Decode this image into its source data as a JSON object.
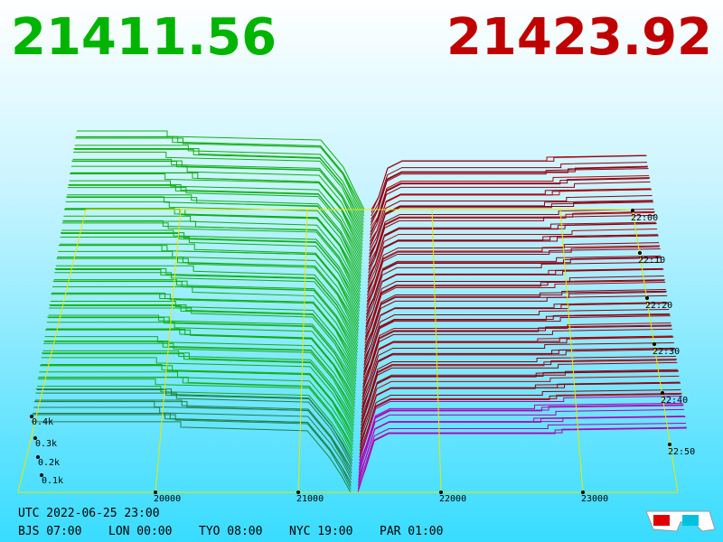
{
  "header": {
    "bid_price": "21411.56",
    "ask_price": "21423.92"
  },
  "axes": {
    "price_labels": [
      "20000",
      "21000",
      "22000",
      "23000"
    ],
    "depth_labels": [
      "0.4k",
      "0.3k",
      "0.2k",
      "0.1k"
    ],
    "time_labels": [
      "22:00",
      "22:10",
      "22:20",
      "22:30",
      "22:40",
      "22:50"
    ]
  },
  "footer": {
    "utc": "UTC 2022-06-25 23:00",
    "zones": [
      "BJS 07:00",
      "LON 00:00",
      "TYO 08:00",
      "NYC 19:00",
      "PAR 01:00"
    ]
  }
}
